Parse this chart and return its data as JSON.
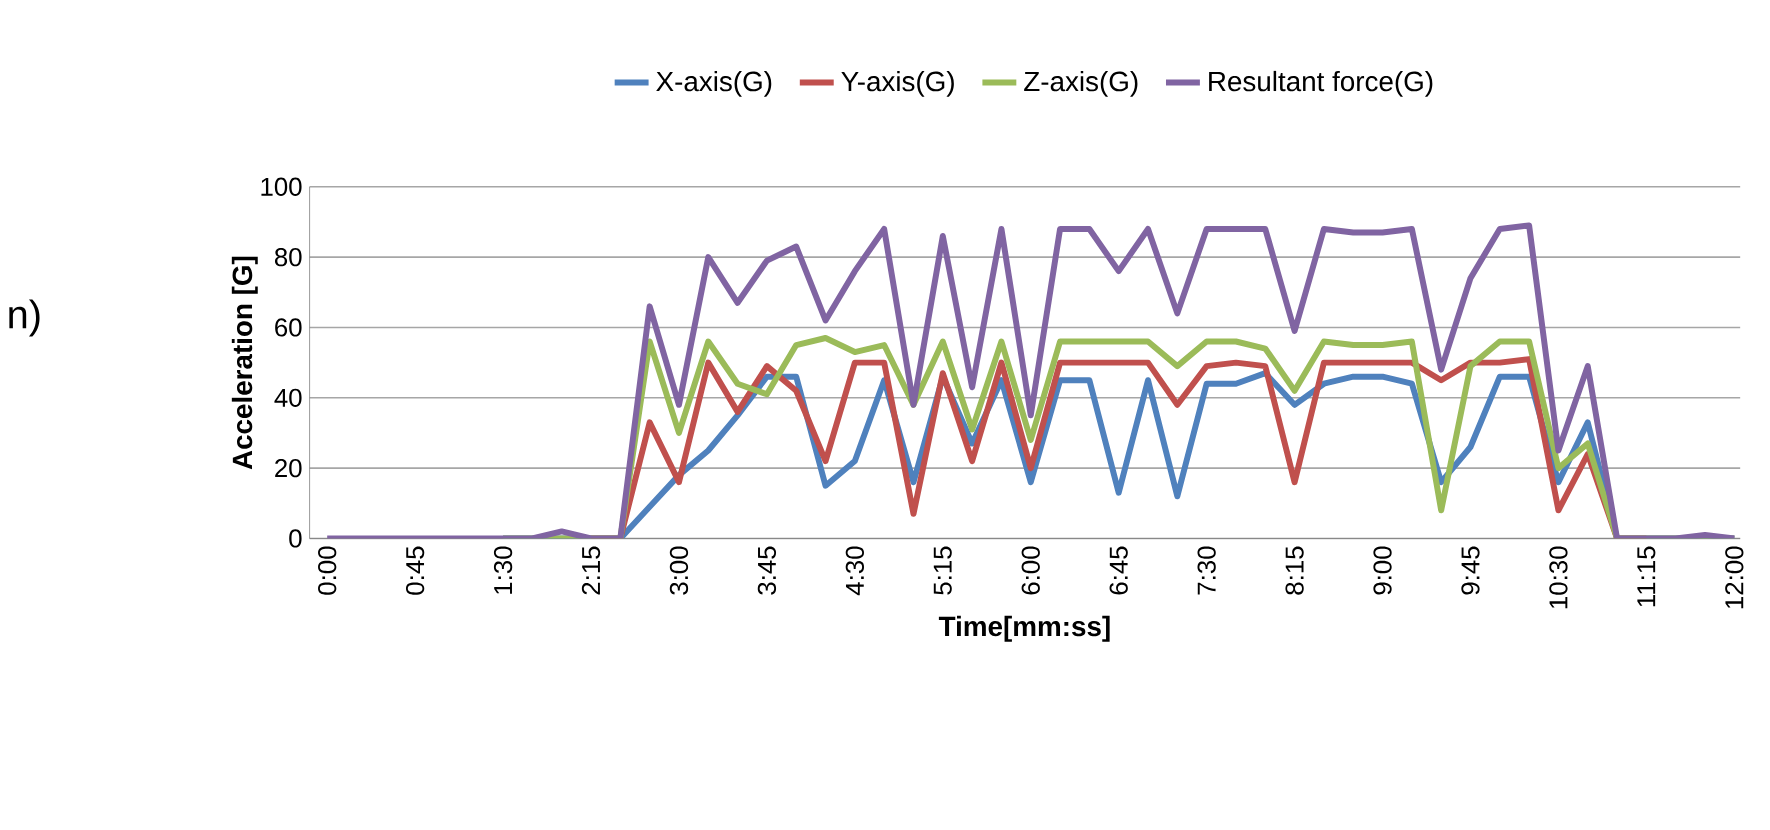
{
  "chart_data": {
    "type": "line",
    "xlabel": "Time[mm:ss]",
    "ylabel": "Acceleration [G]",
    "categories": [
      "0:00",
      null,
      null,
      "0:45",
      null,
      null,
      "1:30",
      null,
      null,
      "2:15",
      null,
      null,
      "3:00",
      null,
      null,
      "3:45",
      null,
      null,
      "4:30",
      null,
      null,
      "5:15",
      null,
      null,
      "6:00",
      null,
      null,
      "6:45",
      null,
      null,
      "7:30",
      null,
      null,
      "8:15",
      null,
      null,
      "9:00",
      null,
      null,
      "9:45",
      null,
      null,
      "10:30",
      null,
      null,
      "11:15",
      null,
      null,
      "12:00"
    ],
    "series": [
      {
        "name": "X-axis(G)",
        "color": "#4f81bd",
        "values": [
          null,
          null,
          null,
          null,
          null,
          null,
          0,
          0,
          0,
          0,
          0,
          9,
          18,
          25,
          35,
          46,
          46,
          15,
          22,
          45,
          16,
          46,
          27,
          45,
          16,
          45,
          45,
          13,
          45,
          12,
          44,
          44,
          47,
          38,
          44,
          46,
          46,
          44,
          16,
          26,
          46,
          46,
          16,
          33,
          0,
          0,
          0,
          0,
          0
        ]
      },
      {
        "name": "Y-axis(G)",
        "color": "#c0504d",
        "values": [
          null,
          null,
          null,
          null,
          null,
          null,
          null,
          null,
          null,
          0,
          0,
          33,
          16,
          50,
          36,
          49,
          42,
          22,
          50,
          50,
          7,
          47,
          22,
          50,
          20,
          50,
          50,
          50,
          50,
          38,
          49,
          50,
          49,
          16,
          50,
          50,
          50,
          50,
          45,
          50,
          50,
          51,
          8,
          24,
          0,
          0,
          null,
          null,
          null
        ]
      },
      {
        "name": "Z-axis(G)",
        "color": "#9bbb59",
        "values": [
          null,
          null,
          null,
          null,
          null,
          null,
          0,
          0,
          0,
          0,
          0,
          56,
          30,
          56,
          44,
          41,
          55,
          57,
          53,
          55,
          38,
          56,
          31,
          56,
          28,
          56,
          56,
          56,
          56,
          49,
          56,
          56,
          54,
          42,
          56,
          55,
          55,
          56,
          8,
          49,
          56,
          56,
          20,
          27,
          0,
          0,
          0,
          0,
          0
        ]
      },
      {
        "name": "Resultant force(G)",
        "color": "#8064a2",
        "values": [
          0,
          0,
          0,
          0,
          0,
          0,
          0,
          0,
          2,
          0,
          0,
          66,
          38,
          80,
          67,
          79,
          83,
          62,
          76,
          88,
          38,
          86,
          43,
          88,
          35,
          88,
          88,
          76,
          88,
          64,
          88,
          88,
          88,
          59,
          88,
          87,
          87,
          88,
          48,
          74,
          88,
          89,
          25,
          49,
          0,
          0,
          0,
          1,
          0
        ]
      }
    ],
    "ylim": [
      0,
      100
    ],
    "yticks": [
      0,
      20,
      40,
      60,
      80,
      100
    ],
    "grid": "y",
    "legend": "top",
    "marker": "none",
    "line_style": "solid",
    "annotations": [
      "n)"
    ]
  }
}
